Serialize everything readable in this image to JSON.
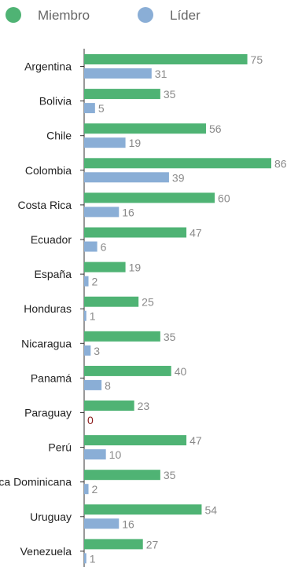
{
  "chart_data": {
    "type": "bar",
    "orientation": "horizontal",
    "title": "",
    "xlabel": "",
    "ylabel": "",
    "legend": "top-left",
    "grid": false,
    "xlim": [
      0,
      86
    ],
    "categories": [
      "Argentina",
      "Bolivia",
      "Chile",
      "Colombia",
      "Costa Rica",
      "Ecuador",
      "España",
      "Honduras",
      "Nicaragua",
      "Panamá",
      "Paraguay",
      "Perú",
      "República Dominicana",
      "Uruguay",
      "Venezuela"
    ],
    "series": [
      {
        "name": "Miembro",
        "color": "#4fb374",
        "values": [
          75,
          35,
          56,
          86,
          60,
          47,
          19,
          25,
          35,
          40,
          23,
          47,
          35,
          54,
          27
        ]
      },
      {
        "name": "Líder",
        "color": "#8aaed6",
        "values": [
          31,
          5,
          19,
          39,
          16,
          6,
          2,
          1,
          3,
          8,
          0,
          10,
          2,
          16,
          1
        ]
      }
    ],
    "zero_value_color": "#8b1a1a"
  }
}
